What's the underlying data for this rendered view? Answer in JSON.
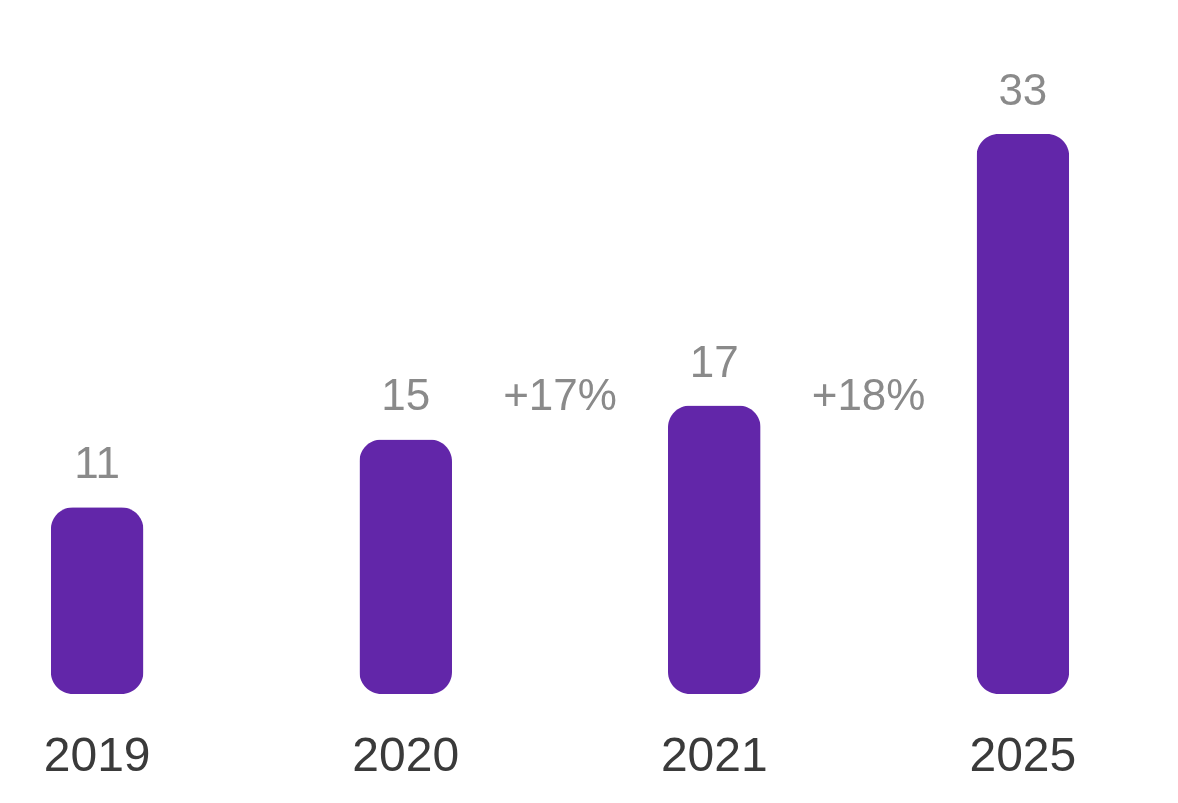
{
  "chart_data": {
    "type": "bar",
    "categories": [
      "2019",
      "2020",
      "2021",
      "2025"
    ],
    "series": [
      {
        "color": "#6226a9",
        "values": [
          11,
          15,
          17,
          33
        ]
      }
    ],
    "data_labels": true,
    "tick_labels": "x",
    "grid": false,
    "annotations": [
      "+17%",
      "+18%"
    ]
  }
}
